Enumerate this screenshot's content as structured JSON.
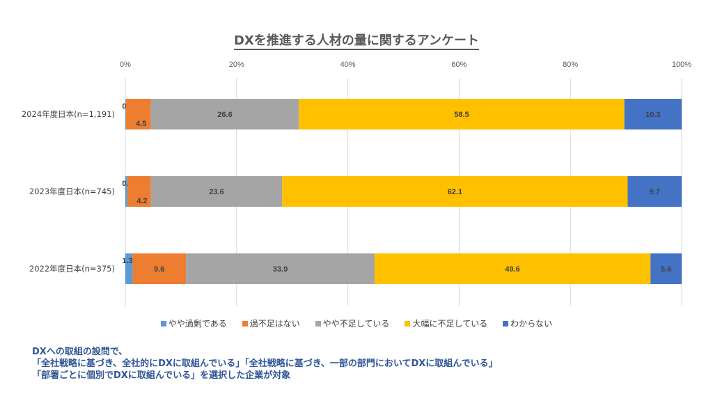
{
  "chart_data": {
    "type": "bar",
    "orientation": "horizontal",
    "stacked": "percent",
    "title": "DXを推進する人材の量に関するアンケート",
    "xlabel": "",
    "ylabel": "",
    "xlim": [
      0,
      100
    ],
    "x_ticks": [
      "0%",
      "20%",
      "40%",
      "60%",
      "80%",
      "100%"
    ],
    "grid": true,
    "legend_position": "bottom",
    "categories": [
      "2024年度日本(n=1,191)",
      "2023年度日本(n=745)",
      "2022年度日本(n=375)"
    ],
    "series": [
      {
        "name": "やや過剰である",
        "color": "#5B9BD5",
        "values": [
          0.1,
          0.4,
          1.3
        ]
      },
      {
        "name": "過不足はない",
        "color": "#ED7D31",
        "values": [
          4.5,
          4.2,
          9.6
        ]
      },
      {
        "name": "やや不足している",
        "color": "#A5A5A5",
        "values": [
          26.6,
          23.6,
          33.9
        ]
      },
      {
        "name": "大幅に不足している",
        "color": "#FFC000",
        "values": [
          58.5,
          62.1,
          49.6
        ]
      },
      {
        "name": "わからない",
        "color": "#4472C4",
        "values": [
          10.3,
          9.7,
          5.6
        ]
      }
    ]
  },
  "note": {
    "lines": [
      "DXへの取組の設問で、",
      "「全社戦略に基づき、全社的にDXに取組んでいる」「全社戦略に基づき、一部の部門においてDXに取組んでいる」",
      "「部署ごとに個別でDXに取組んでいる」を選択した企業が対象"
    ]
  }
}
